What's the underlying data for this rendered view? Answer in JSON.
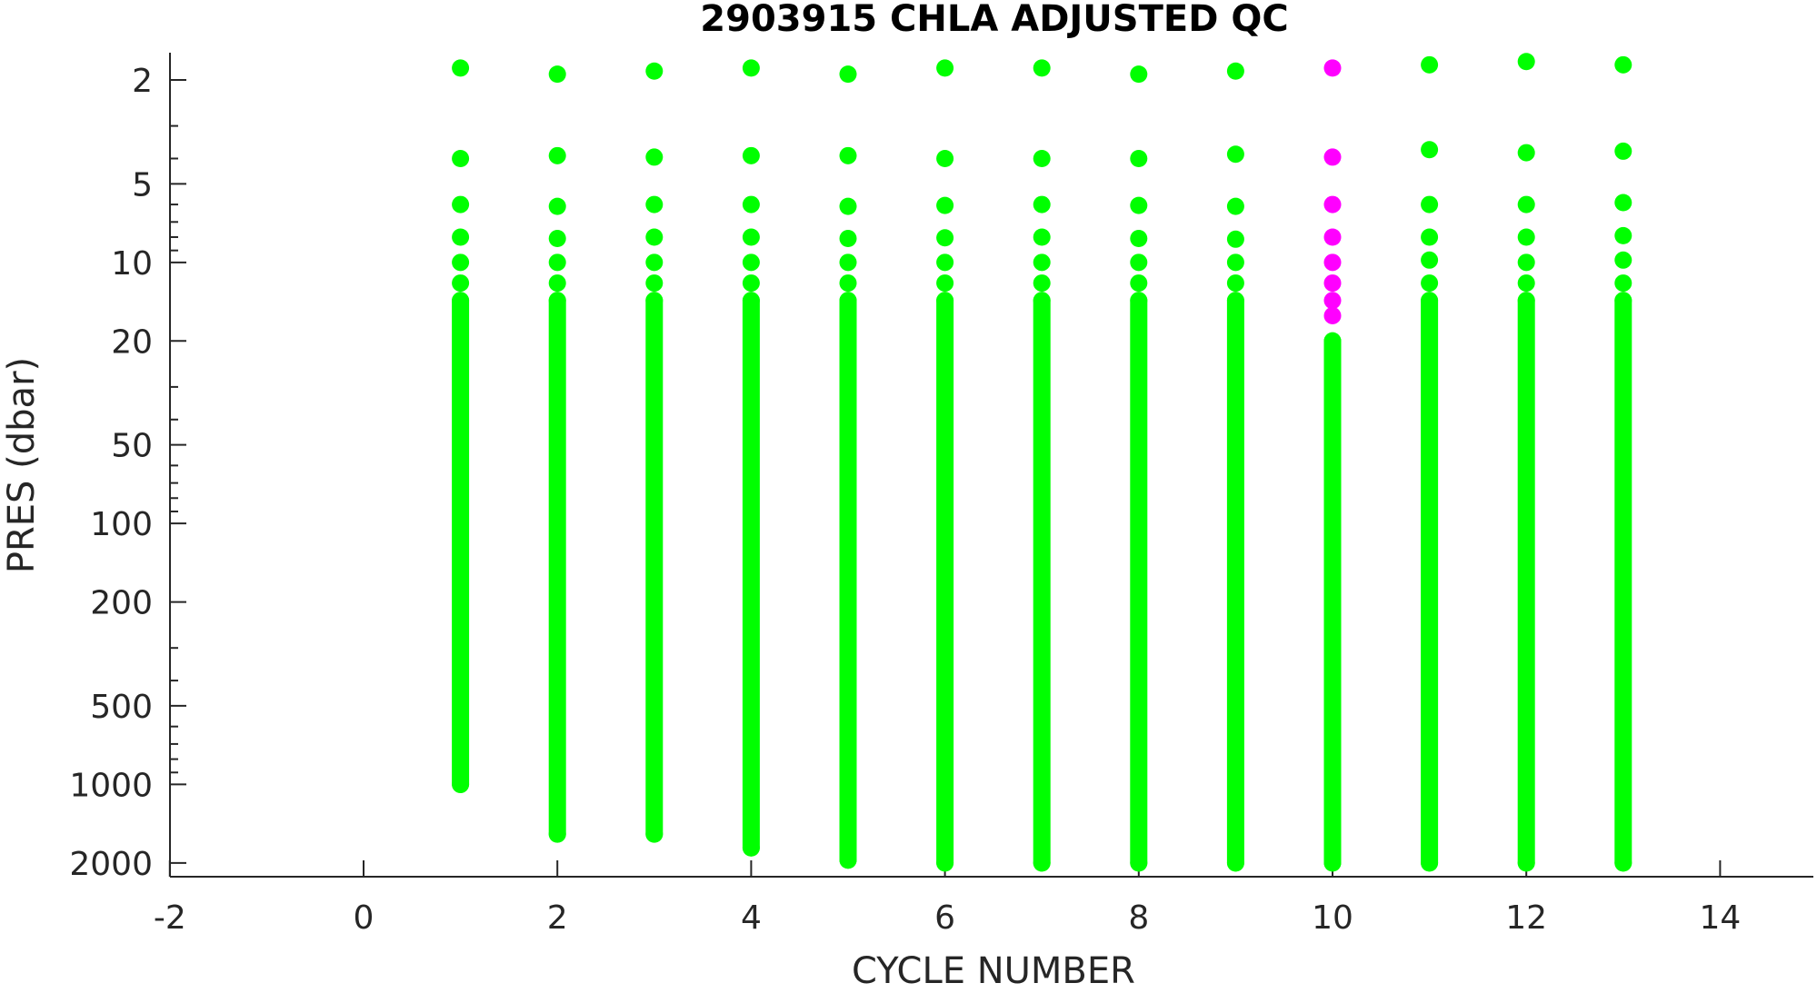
{
  "chart_data": {
    "type": "scatter",
    "title": "2903915  CHLA ADJUSTED QC",
    "xlabel": "CYCLE NUMBER",
    "ylabel": "PRES (dbar)",
    "xlim": [
      -2,
      15
    ],
    "ylim": [
      1.6,
      2200
    ],
    "y_scale": "log",
    "y_reversed": true,
    "grid": false,
    "x_ticks": [
      -2,
      0,
      2,
      4,
      6,
      8,
      10,
      12,
      14
    ],
    "x_tick_labels": [
      "-2",
      "0",
      "2",
      "4",
      "6",
      "8",
      "10",
      "12",
      "14"
    ],
    "y_ticks": [
      2,
      5,
      10,
      20,
      50,
      100,
      200,
      500,
      1000,
      2000
    ],
    "y_tick_labels": [
      "2",
      "5",
      "10",
      "20",
      "50",
      "100",
      "200",
      "500",
      "1000",
      "2000"
    ],
    "colors": {
      "qc_good": "#00ff00",
      "qc_flagged": "#ff00ff",
      "axis": "#262626"
    },
    "series": [
      {
        "color": "#00ff00",
        "profiles": [
          {
            "x": 1,
            "top_points": [
              1.8,
              4.0,
              6.0,
              8.0,
              10.0,
              12.0
            ],
            "deep_start": 14,
            "deep_end": 1000
          },
          {
            "x": 2,
            "top_points": [
              1.9,
              3.9,
              6.1,
              8.1,
              10.0,
              12.0
            ],
            "deep_start": 14,
            "deep_end": 1550
          },
          {
            "x": 3,
            "top_points": [
              1.85,
              3.95,
              6.0,
              8.0,
              10.0,
              12.0
            ],
            "deep_start": 14,
            "deep_end": 1550
          },
          {
            "x": 4,
            "top_points": [
              1.8,
              3.9,
              6.0,
              8.0,
              10.0,
              12.0
            ],
            "deep_start": 14,
            "deep_end": 1750
          },
          {
            "x": 5,
            "top_points": [
              1.9,
              3.9,
              6.1,
              8.1,
              10.0,
              12.0
            ],
            "deep_start": 14,
            "deep_end": 1950
          },
          {
            "x": 6,
            "top_points": [
              1.8,
              4.0,
              6.05,
              8.05,
              10.0,
              12.0
            ],
            "deep_start": 14,
            "deep_end": 2000
          },
          {
            "x": 7,
            "top_points": [
              1.8,
              4.0,
              6.0,
              8.0,
              10.0,
              12.0
            ],
            "deep_start": 14,
            "deep_end": 2000
          },
          {
            "x": 8,
            "top_points": [
              1.9,
              4.0,
              6.05,
              8.1,
              10.0,
              12.0
            ],
            "deep_start": 14,
            "deep_end": 2000
          },
          {
            "x": 9,
            "top_points": [
              1.85,
              3.85,
              6.1,
              8.15,
              10.0,
              12.0
            ],
            "deep_start": 14,
            "deep_end": 2000
          },
          {
            "x": 10,
            "top_points": [],
            "deep_start": 20,
            "deep_end": 2000
          },
          {
            "x": 11,
            "top_points": [
              1.75,
              3.7,
              6.0,
              8.0,
              9.8,
              12.0
            ],
            "deep_start": 14,
            "deep_end": 2000
          },
          {
            "x": 12,
            "top_points": [
              1.7,
              3.8,
              6.0,
              8.0,
              10.0,
              12.0
            ],
            "deep_start": 14,
            "deep_end": 2000
          },
          {
            "x": 13,
            "top_points": [
              1.75,
              3.75,
              5.9,
              7.9,
              9.8,
              12.0
            ],
            "deep_start": 14,
            "deep_end": 2000
          }
        ]
      },
      {
        "color": "#ff00ff",
        "profiles": [
          {
            "x": 10,
            "top_points": [
              1.8,
              3.95,
              6.0,
              8.0,
              10.0,
              12.0,
              14.0,
              16.0
            ],
            "deep_start": null,
            "deep_end": null
          }
        ]
      }
    ]
  }
}
